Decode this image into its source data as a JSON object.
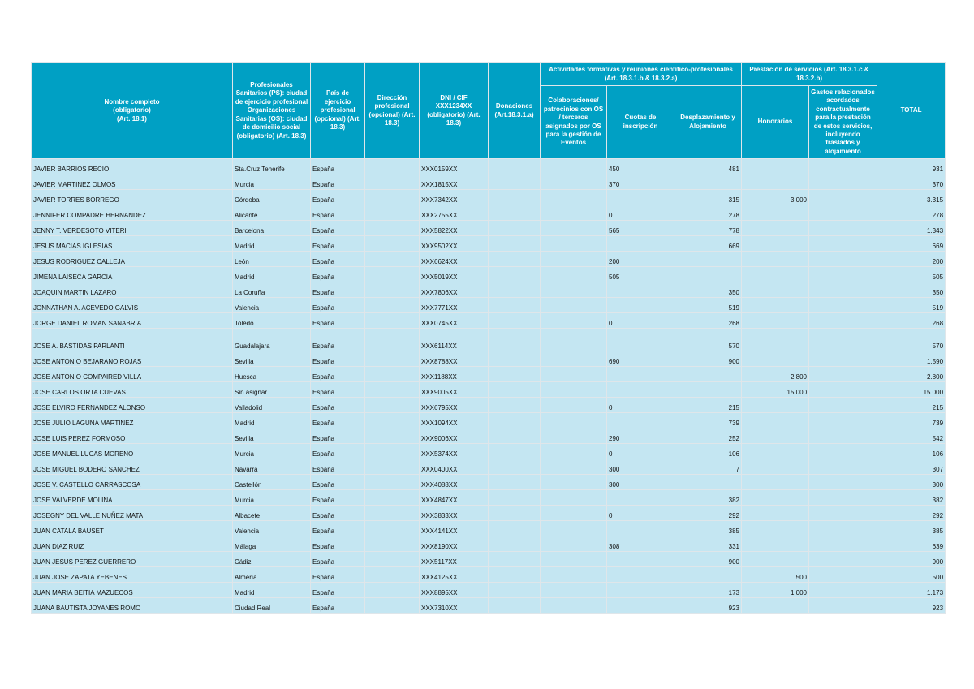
{
  "header": {
    "nombre": "Nombre completo\n(obligatorio)\n(Art. 18.1)",
    "ciudad": "Profesionales Sanitarios (PS): ciudad de ejercicio profesional Organizaciones Sanitarias (OS): ciudad de domicilio social (obligatorio) (Art. 18.3)",
    "pais": "País de ejercicio profesional (opcional) (Art. 18.3)",
    "direccion": "Dirección profesional (opcional) (Art. 18.3)",
    "dni": "DNI / CIF XXX1234XX (obligatorio) (Art. 18.3)",
    "donaciones": "Donaciones (Art.18.3.1.a)",
    "actividades": "Actividades formativas y reuniones científico-profesionales (Art. 18.3.1.b & 18.3.2.a)",
    "colaboraciones": "Colaboraciones/ patrocinios con OS / terceros asignados por OS para la gestión de Eventos",
    "cuotas": "Cuotas de inscripción",
    "desplazamiento": "Desplazamiento y Alojamiento",
    "prestacion": "Prestación de servicios (Art. 18.3.1.c & 18.3.2.b)",
    "honorarios": "Honorarios",
    "gastos": "Gastos relacionados acordados contractualmente para la prestación de estos servicios, incluyendo traslados y alojamiento",
    "total": "TOTAL"
  },
  "rows": [
    [
      "JAVIER BARRIOS RECIO",
      "Sta.Cruz Tenerife",
      "España",
      "",
      "XXX0159XX",
      "",
      "",
      "450",
      "481",
      "",
      "",
      "931"
    ],
    [
      "JAVIER MARTINEZ OLMOS",
      "Murcia",
      "España",
      "",
      "XXX1815XX",
      "",
      "",
      "370",
      "",
      "",
      "",
      "370"
    ],
    [
      "JAVIER TORRES BORREGO",
      "Córdoba",
      "España",
      "",
      "XXX7342XX",
      "",
      "",
      "",
      "315",
      "3.000",
      "",
      "3.315"
    ],
    [
      "JENNIFER COMPADRE HERNANDEZ",
      "Alicante",
      "España",
      "",
      "XXX2755XX",
      "",
      "",
      "0",
      "278",
      "",
      "",
      "278"
    ],
    [
      "JENNY T. VERDESOTO VITERI",
      "Barcelona",
      "España",
      "",
      "XXX5822XX",
      "",
      "",
      "565",
      "778",
      "",
      "",
      "1.343"
    ],
    [
      "JESUS MACIAS IGLESIAS",
      "Madrid",
      "España",
      "",
      "XXX9502XX",
      "",
      "",
      "",
      "669",
      "",
      "",
      "669"
    ],
    [
      "JESUS RODRIGUEZ CALLEJA",
      "León",
      "España",
      "",
      "XXX6624XX",
      "",
      "",
      "200",
      "",
      "",
      "",
      "200"
    ],
    [
      "JIMENA LAISECA GARCIA",
      "Madrid",
      "España",
      "",
      "XXX5019XX",
      "",
      "",
      "505",
      "",
      "",
      "",
      "505"
    ],
    [
      "JOAQUIN MARTIN LAZARO",
      "La Coruña",
      "España",
      "",
      "XXX7806XX",
      "",
      "",
      "",
      "350",
      "",
      "",
      "350"
    ],
    [
      "JONNATHAN A. ACEVEDO GALVIS",
      "Valencia",
      "España",
      "",
      "XXX7771XX",
      "",
      "",
      "",
      "519",
      "",
      "",
      "519"
    ],
    [
      "JORGE DANIEL ROMAN SANABRIA",
      "Toledo",
      "España",
      "",
      "XXX0745XX",
      "",
      "",
      "0",
      "268",
      "",
      "",
      "268"
    ],
    [
      "JOSE A. BASTIDAS PARLANTI",
      "Guadalajara",
      "España",
      "",
      "XXX6114XX",
      "",
      "",
      "",
      "570",
      "",
      "",
      "570"
    ],
    [
      "JOSE ANTONIO BEJARANO ROJAS",
      "Sevilla",
      "España",
      "",
      "XXX8788XX",
      "",
      "",
      "690",
      "900",
      "",
      "",
      "1.590"
    ],
    [
      "JOSE ANTONIO COMPAIRED VILLA",
      "Huesca",
      "España",
      "",
      "XXX1188XX",
      "",
      "",
      "",
      "",
      "2.800",
      "",
      "2.800"
    ],
    [
      "JOSE CARLOS ORTA CUEVAS",
      "Sin asignar",
      "España",
      "",
      "XXX9005XX",
      "",
      "",
      "",
      "",
      "15.000",
      "",
      "15.000"
    ],
    [
      "JOSE ELVIRO FERNANDEZ ALONSO",
      "Valladolid",
      "España",
      "",
      "XXX6795XX",
      "",
      "",
      "0",
      "215",
      "",
      "",
      "215"
    ],
    [
      "JOSE JULIO LAGUNA MARTINEZ",
      "Madrid",
      "España",
      "",
      "XXX1094XX",
      "",
      "",
      "",
      "739",
      "",
      "",
      "739"
    ],
    [
      "JOSE LUIS PEREZ FORMOSO",
      "Sevilla",
      "España",
      "",
      "XXX9006XX",
      "",
      "",
      "290",
      "252",
      "",
      "",
      "542"
    ],
    [
      "JOSE MANUEL LUCAS MORENO",
      "Murcia",
      "España",
      "",
      "XXX5374XX",
      "",
      "",
      "0",
      "106",
      "",
      "",
      "106"
    ],
    [
      "JOSE MIGUEL BODERO SANCHEZ",
      "Navarra",
      "España",
      "",
      "XXX0400XX",
      "",
      "",
      "300",
      "7",
      "",
      "",
      "307"
    ],
    [
      "JOSE V. CASTELLO CARRASCOSA",
      "Castellón",
      "España",
      "",
      "XXX4088XX",
      "",
      "",
      "300",
      "",
      "",
      "",
      "300"
    ],
    [
      "JOSE VALVERDE MOLINA",
      "Murcia",
      "España",
      "",
      "XXX4847XX",
      "",
      "",
      "",
      "382",
      "",
      "",
      "382"
    ],
    [
      "JOSEGNY DEL VALLE NUÑEZ MATA",
      "Albacete",
      "España",
      "",
      "XXX3833XX",
      "",
      "",
      "0",
      "292",
      "",
      "",
      "292"
    ],
    [
      "JUAN CATALA BAUSET",
      "Valencia",
      "España",
      "",
      "XXX4141XX",
      "",
      "",
      "",
      "385",
      "",
      "",
      "385"
    ],
    [
      "JUAN DIAZ RUIZ",
      "Málaga",
      "España",
      "",
      "XXX8190XX",
      "",
      "",
      "308",
      "331",
      "",
      "",
      "639"
    ],
    [
      "JUAN JESUS PEREZ GUERRERO",
      "Cádiz",
      "España",
      "",
      "XXX5117XX",
      "",
      "",
      "",
      "900",
      "",
      "",
      "900"
    ],
    [
      "JUAN JOSE ZAPATA YEBENES",
      "Almería",
      "España",
      "",
      "XXX4125XX",
      "",
      "",
      "",
      "",
      "500",
      "",
      "500"
    ],
    [
      "JUAN MARIA BEITIA MAZUECOS",
      "Madrid",
      "España",
      "",
      "XXX8895XX",
      "",
      "",
      "",
      "173",
      "1.000",
      "",
      "1.173"
    ],
    [
      "JUANA BAUTISTA JOYANES ROMO",
      "Ciudad Real",
      "España",
      "",
      "XXX7310XX",
      "",
      "",
      "",
      "923",
      "",
      "",
      "923"
    ]
  ],
  "colors": {
    "header_bg": "#00a0c4",
    "row_bg": "#c4e6f2",
    "grid": "#dfe6ea"
  }
}
